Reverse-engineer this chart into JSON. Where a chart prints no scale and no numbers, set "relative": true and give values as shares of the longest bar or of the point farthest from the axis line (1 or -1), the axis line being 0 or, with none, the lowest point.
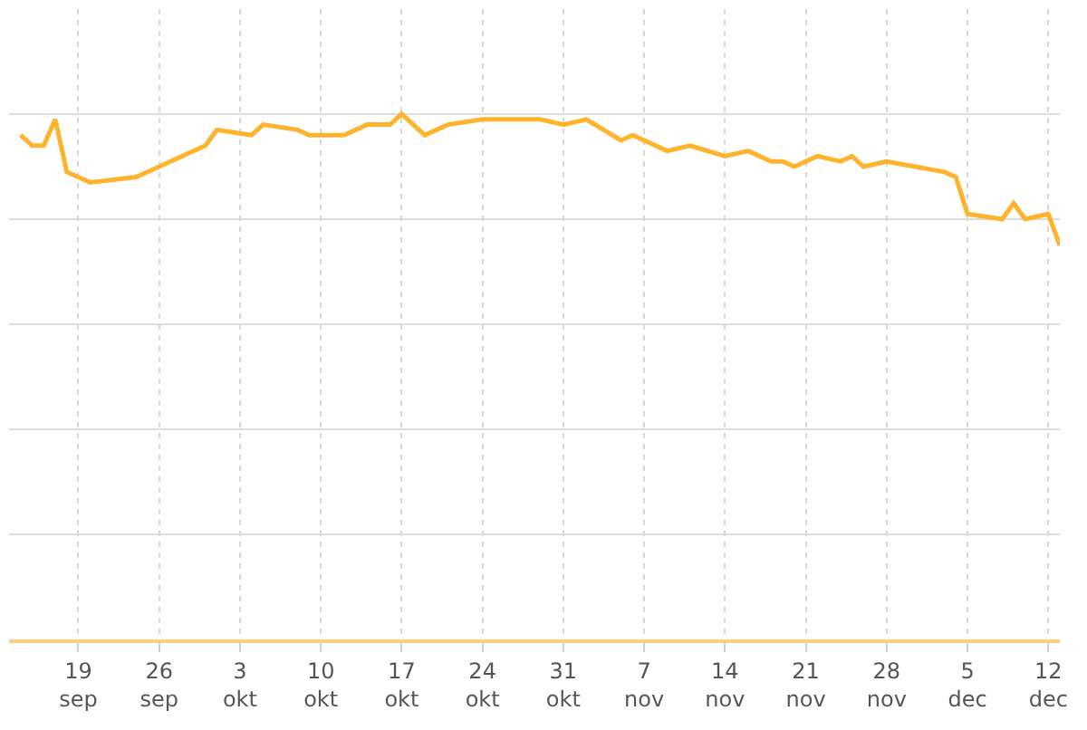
{
  "chart_data": {
    "type": "line",
    "relative": true,
    "color": "#ffb22b",
    "grid": true,
    "marker": "none",
    "line_style": "solid",
    "x": [
      "--09-14",
      "--09-15",
      "--09-16",
      "--09-17",
      "--09-18",
      "--09-20",
      "--09-24",
      "--09-30",
      "--10-01",
      "--10-04",
      "--10-05",
      "--10-08",
      "--10-09",
      "--10-12",
      "--10-14",
      "--10-16",
      "--10-17",
      "--10-19",
      "--10-21",
      "--10-24",
      "--10-25",
      "--10-29",
      "--10-31",
      "--11-02",
      "--11-05",
      "--11-06",
      "--11-09",
      "--11-11",
      "--11-14",
      "--11-16",
      "--11-18",
      "--11-19",
      "--11-20",
      "--11-22",
      "--11-24",
      "--11-25",
      "--11-26",
      "--11-28",
      "--12-03",
      "--12-04",
      "--12-05",
      "--12-08",
      "--12-09",
      "--12-10",
      "--12-12",
      "--12-13"
    ],
    "values": [
      0.96,
      0.94,
      0.94,
      0.99,
      0.89,
      0.87,
      0.88,
      0.94,
      0.97,
      0.96,
      0.98,
      0.97,
      0.96,
      0.96,
      0.98,
      0.98,
      1,
      0.96,
      0.98,
      0.99,
      0.99,
      0.99,
      0.98,
      0.99,
      0.95,
      0.96,
      0.93,
      0.94,
      0.92,
      0.93,
      0.91,
      0.91,
      0.9,
      0.92,
      0.91,
      0.92,
      0.9,
      0.91,
      0.89,
      0.88,
      0.81,
      0.8,
      0.83,
      0.8,
      0.81,
      0.75
    ],
    "xlim": [
      "--09-13",
      "--12-13"
    ],
    "xticks": [
      {
        "value": "--09-19",
        "label": "19\nsep"
      },
      {
        "value": "--09-26",
        "label": "26\nsep"
      },
      {
        "value": "--10-03",
        "label": "3\nokt"
      },
      {
        "value": "--10-10",
        "label": "10\nokt"
      },
      {
        "value": "--10-17",
        "label": "17\nokt"
      },
      {
        "value": "--10-24",
        "label": "24\nokt"
      },
      {
        "value": "--10-31",
        "label": "31\nokt"
      },
      {
        "value": "--11-07",
        "label": "7\nnov"
      },
      {
        "value": "--11-14",
        "label": "14\nnov"
      },
      {
        "value": "--11-21",
        "label": "21\nnov"
      },
      {
        "value": "--11-28",
        "label": "28\nnov"
      },
      {
        "value": "--12-05",
        "label": "5\ndec"
      },
      {
        "value": "--12-12",
        "label": "12\ndec"
      }
    ]
  }
}
